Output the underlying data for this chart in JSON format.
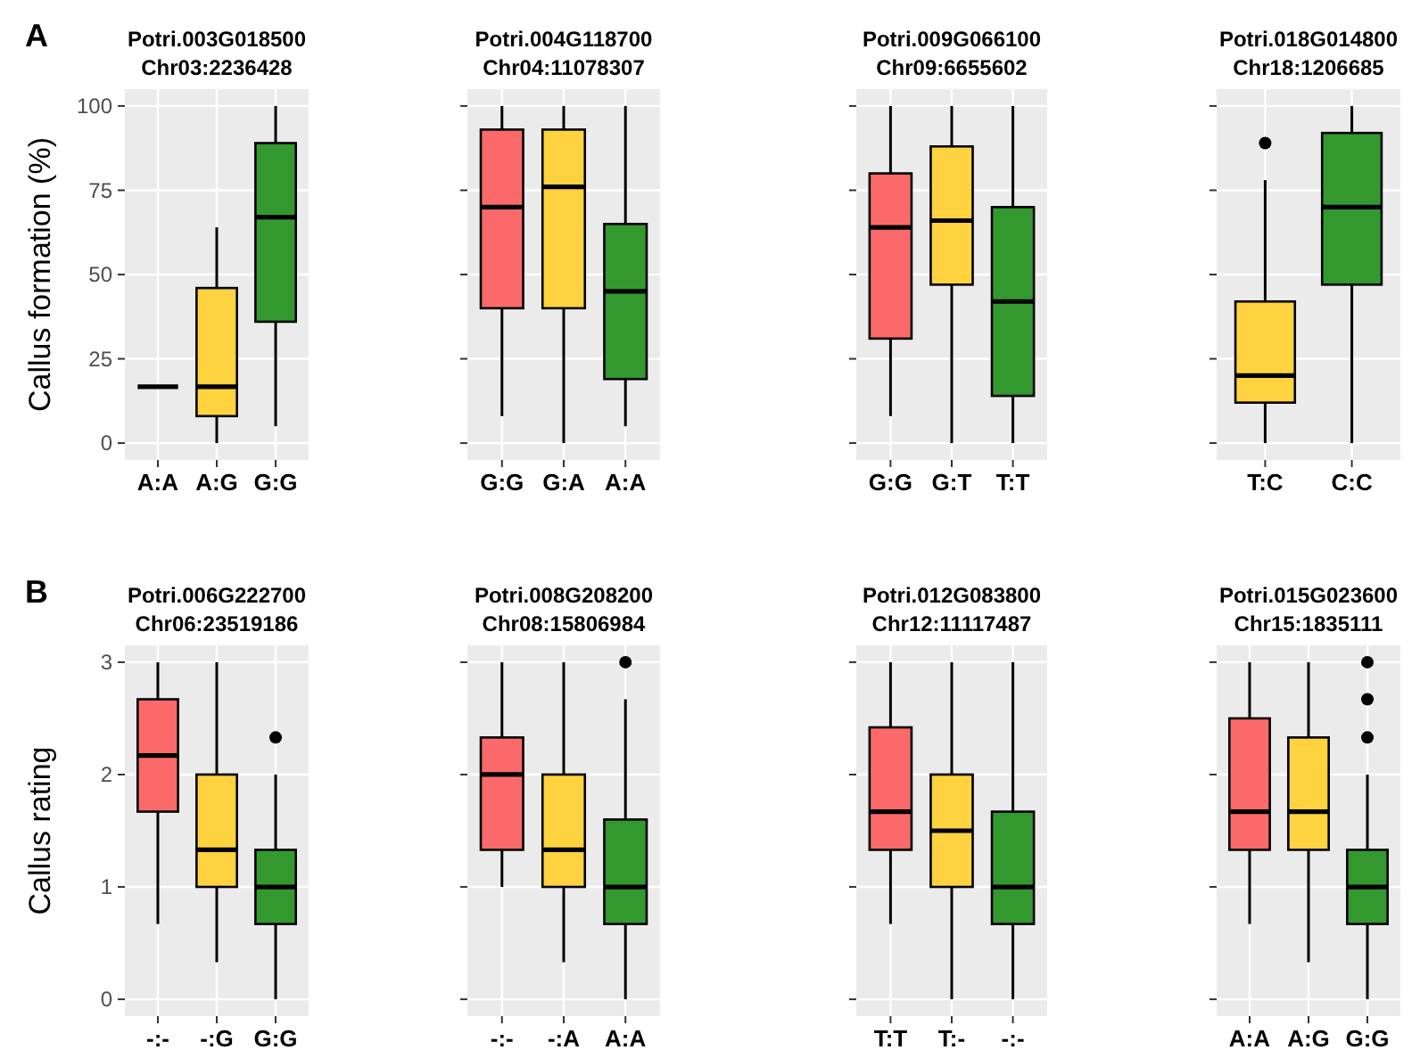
{
  "chart_data": [
    {
      "type": "box",
      "title": "Potri.003G018500",
      "subtitle": "Chr03:2236428",
      "ylabel": "Callus formation (%)",
      "annotations": [
        "A"
      ],
      "categories": [
        "A:A",
        "A:G",
        "G:G"
      ],
      "colors": [
        null,
        "#ffd23f",
        "#33992f"
      ],
      "ylim": [
        -5,
        105
      ],
      "yticks": [
        0,
        25,
        50,
        75,
        100
      ],
      "grid": true,
      "boxes": [
        {
          "low": 16.7,
          "q1": 16.7,
          "median": 16.7,
          "q3": 16.7,
          "high": 16.7
        },
        {
          "low": 0,
          "q1": 8,
          "median": 16.7,
          "q3": 46,
          "high": 64
        },
        {
          "low": 5,
          "q1": 36,
          "median": 67,
          "q3": 89,
          "high": 100
        }
      ]
    },
    {
      "type": "box",
      "title": "Potri.004G118700",
      "subtitle": "Chr04:11078307",
      "categories": [
        "G:G",
        "G:A",
        "A:A"
      ],
      "colors": [
        "#fb6a6a",
        "#ffd23f",
        "#33992f"
      ],
      "ylim": [
        -5,
        105
      ],
      "yticks": [
        0,
        25,
        50,
        75,
        100
      ],
      "tick_labels": "x",
      "grid": true,
      "boxes": [
        {
          "low": 8,
          "q1": 40,
          "median": 70,
          "q3": 93,
          "high": 100
        },
        {
          "low": 0,
          "q1": 40,
          "median": 76,
          "q3": 93,
          "high": 100
        },
        {
          "low": 5,
          "q1": 19,
          "median": 45,
          "q3": 65,
          "high": 100
        }
      ]
    },
    {
      "type": "box",
      "title": "Potri.009G066100",
      "subtitle": "Chr09:6655602",
      "categories": [
        "G:G",
        "G:T",
        "T:T"
      ],
      "colors": [
        "#fb6a6a",
        "#ffd23f",
        "#33992f"
      ],
      "ylim": [
        -5,
        105
      ],
      "yticks": [
        0,
        25,
        50,
        75,
        100
      ],
      "tick_labels": "x",
      "grid": true,
      "boxes": [
        {
          "low": 8,
          "q1": 31,
          "median": 64,
          "q3": 80,
          "high": 100
        },
        {
          "low": 0,
          "q1": 47,
          "median": 66,
          "q3": 88,
          "high": 100
        },
        {
          "low": 0,
          "q1": 14,
          "median": 42,
          "q3": 70,
          "high": 100
        }
      ]
    },
    {
      "type": "box",
      "title": "Potri.018G014800",
      "subtitle": "Chr18:1206685",
      "categories": [
        "T:C",
        "C:C"
      ],
      "colors": [
        "#ffd23f",
        "#33992f"
      ],
      "ylim": [
        -5,
        105
      ],
      "yticks": [
        0,
        25,
        50,
        75,
        100
      ],
      "tick_labels": "x",
      "grid": true,
      "boxes": [
        {
          "low": 0,
          "q1": 12,
          "median": 20,
          "q3": 42,
          "high": 78,
          "outliers": [
            89
          ]
        },
        {
          "low": 0,
          "q1": 47,
          "median": 70,
          "q3": 92,
          "high": 100
        }
      ]
    },
    {
      "type": "box",
      "title": "Potri.006G222700",
      "subtitle": "Chr06:23519186",
      "ylabel": "Callus rating",
      "annotations": [
        "B"
      ],
      "categories": [
        "-:-",
        "-:G",
        "G:G"
      ],
      "colors": [
        "#fb6a6a",
        "#ffd23f",
        "#33992f"
      ],
      "ylim": [
        -0.15,
        3.15
      ],
      "yticks": [
        0,
        1,
        2,
        3
      ],
      "grid": true,
      "boxes": [
        {
          "low": 0.67,
          "q1": 1.67,
          "median": 2.17,
          "q3": 2.67,
          "high": 3
        },
        {
          "low": 0.33,
          "q1": 1,
          "median": 1.33,
          "q3": 2,
          "high": 3
        },
        {
          "low": 0,
          "q1": 0.67,
          "median": 1,
          "q3": 1.33,
          "high": 2,
          "outliers": [
            2.33
          ]
        }
      ]
    },
    {
      "type": "box",
      "title": "Potri.008G208200",
      "subtitle": "Chr08:15806984",
      "categories": [
        "-:-",
        "-:A",
        "A:A"
      ],
      "colors": [
        "#fb6a6a",
        "#ffd23f",
        "#33992f"
      ],
      "ylim": [
        -0.15,
        3.15
      ],
      "yticks": [
        0,
        1,
        2,
        3
      ],
      "tick_labels": "x",
      "grid": true,
      "boxes": [
        {
          "low": 1,
          "q1": 1.33,
          "median": 2,
          "q3": 2.33,
          "high": 3
        },
        {
          "low": 0.33,
          "q1": 1,
          "median": 1.33,
          "q3": 2,
          "high": 3
        },
        {
          "low": 0,
          "q1": 0.67,
          "median": 1,
          "q3": 1.6,
          "high": 2.67,
          "outliers": [
            3
          ]
        }
      ]
    },
    {
      "type": "box",
      "title": "Potri.012G083800",
      "subtitle": "Chr12:11117487",
      "categories": [
        "T:T",
        "T:-",
        "-:-"
      ],
      "colors": [
        "#fb6a6a",
        "#ffd23f",
        "#33992f"
      ],
      "ylim": [
        -0.15,
        3.15
      ],
      "yticks": [
        0,
        1,
        2,
        3
      ],
      "tick_labels": "x",
      "grid": true,
      "boxes": [
        {
          "low": 0.67,
          "q1": 1.33,
          "median": 1.67,
          "q3": 2.42,
          "high": 3
        },
        {
          "low": 0,
          "q1": 1,
          "median": 1.5,
          "q3": 2,
          "high": 3
        },
        {
          "low": 0,
          "q1": 0.67,
          "median": 1,
          "q3": 1.67,
          "high": 3
        }
      ]
    },
    {
      "type": "box",
      "title": "Potri.015G023600",
      "subtitle": "Chr15:1835111",
      "categories": [
        "A:A",
        "A:G",
        "G:G"
      ],
      "colors": [
        "#fb6a6a",
        "#ffd23f",
        "#33992f"
      ],
      "ylim": [
        -0.15,
        3.15
      ],
      "yticks": [
        0,
        1,
        2,
        3
      ],
      "tick_labels": "x",
      "grid": true,
      "boxes": [
        {
          "low": 0.67,
          "q1": 1.33,
          "median": 1.67,
          "q3": 2.5,
          "high": 3
        },
        {
          "low": 0.33,
          "q1": 1.33,
          "median": 1.67,
          "q3": 2.33,
          "high": 3
        },
        {
          "low": 0,
          "q1": 0.67,
          "median": 1,
          "q3": 1.33,
          "high": 2,
          "outliers": [
            2.33,
            2.67,
            3
          ]
        }
      ]
    }
  ]
}
